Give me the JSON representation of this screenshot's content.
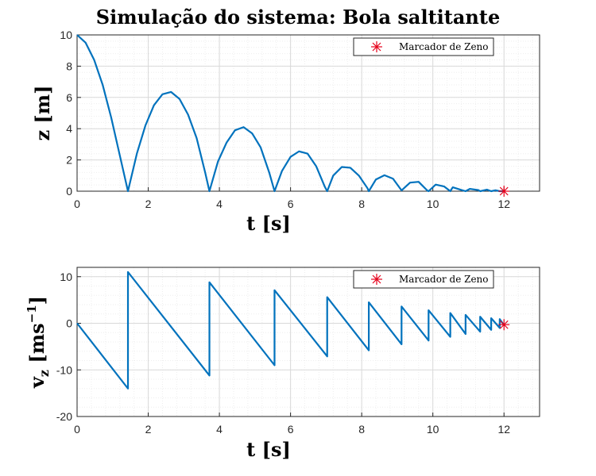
{
  "figure_title": "Simulação do sistema: Bola saltitante",
  "colors": {
    "series": "#0072bd",
    "marker": "#e5001a",
    "grid": "#d9d9d9"
  },
  "chart_data": [
    {
      "type": "line",
      "title": "Simulação do sistema: Bola saltitante",
      "xlabel": "t [s]",
      "ylabel": "z [m]",
      "xlim": [
        0,
        13
      ],
      "ylim": [
        0,
        10
      ],
      "xticks": [
        0,
        2,
        4,
        6,
        8,
        10,
        12
      ],
      "yticks": [
        0,
        2,
        4,
        6,
        8,
        10
      ],
      "grid": true,
      "minor_grid": true,
      "legend": {
        "position": "top-right",
        "entries": [
          "Marcador de Zeno"
        ]
      },
      "x": [
        0,
        0.24,
        0.48,
        0.72,
        0.96,
        1.2,
        1.43,
        1.68,
        1.92,
        2.16,
        2.4,
        2.64,
        2.88,
        3.12,
        3.36,
        3.6,
        3.72,
        3.96,
        4.2,
        4.44,
        4.68,
        4.92,
        5.16,
        5.4,
        5.55,
        5.76,
        6.0,
        6.24,
        6.48,
        6.72,
        6.96,
        7.03,
        7.2,
        7.44,
        7.68,
        7.92,
        8.16,
        8.2,
        8.4,
        8.64,
        8.88,
        9.12,
        9.36,
        9.6,
        9.84,
        9.88,
        10.08,
        10.32,
        10.49,
        10.56,
        10.8,
        10.92,
        11.04,
        11.28,
        11.33,
        11.52,
        11.64,
        11.76,
        11.88,
        12.0
      ],
      "series": [
        {
          "values": [
            10,
            9.5,
            8.4,
            6.8,
            4.7,
            2.3,
            0,
            2.4,
            4.2,
            5.5,
            6.2,
            6.35,
            5.9,
            4.9,
            3.4,
            1.2,
            0,
            1.9,
            3.1,
            3.9,
            4.1,
            3.7,
            2.8,
            1.2,
            0,
            1.3,
            2.2,
            2.55,
            2.4,
            1.6,
            0.3,
            0,
            1.0,
            1.55,
            1.5,
            1.0,
            0.2,
            0,
            0.75,
            1.02,
            0.8,
            0.05,
            0.55,
            0.6,
            0.05,
            0,
            0.42,
            0.3,
            0,
            0.25,
            0.08,
            0,
            0.15,
            0.07,
            0,
            0.1,
            0,
            0.06,
            0,
            0
          ]
        }
      ],
      "zeno_marker": {
        "x": 12.0,
        "y": 0.0
      }
    },
    {
      "type": "line",
      "xlabel": "t [s]",
      "ylabel": "vz [ms-1]",
      "xlim": [
        0,
        13
      ],
      "ylim": [
        -20,
        12
      ],
      "xticks": [
        0,
        2,
        4,
        6,
        8,
        10,
        12
      ],
      "yticks": [
        -20,
        -10,
        0,
        10
      ],
      "grid": true,
      "minor_grid": true,
      "legend": {
        "position": "top-right",
        "entries": [
          "Marcador de Zeno"
        ]
      },
      "x": [
        0,
        1.43,
        1.43,
        3.72,
        3.72,
        5.55,
        5.55,
        7.03,
        7.03,
        8.2,
        8.2,
        9.12,
        9.12,
        9.88,
        9.88,
        10.49,
        10.49,
        10.92,
        10.92,
        11.33,
        11.33,
        11.64,
        11.64,
        11.88,
        11.88,
        12.0
      ],
      "series": [
        {
          "values": [
            0,
            -14,
            11,
            -11.2,
            8.8,
            -9.0,
            7.1,
            -7.1,
            5.6,
            -5.8,
            4.5,
            -4.5,
            3.6,
            -3.7,
            2.8,
            -2.9,
            2.2,
            -2.3,
            1.8,
            -1.8,
            1.4,
            -1.4,
            1.1,
            -1.0,
            0.9,
            -0.4
          ]
        }
      ],
      "zeno_marker": {
        "x": 12.0,
        "y": -0.3
      }
    }
  ]
}
